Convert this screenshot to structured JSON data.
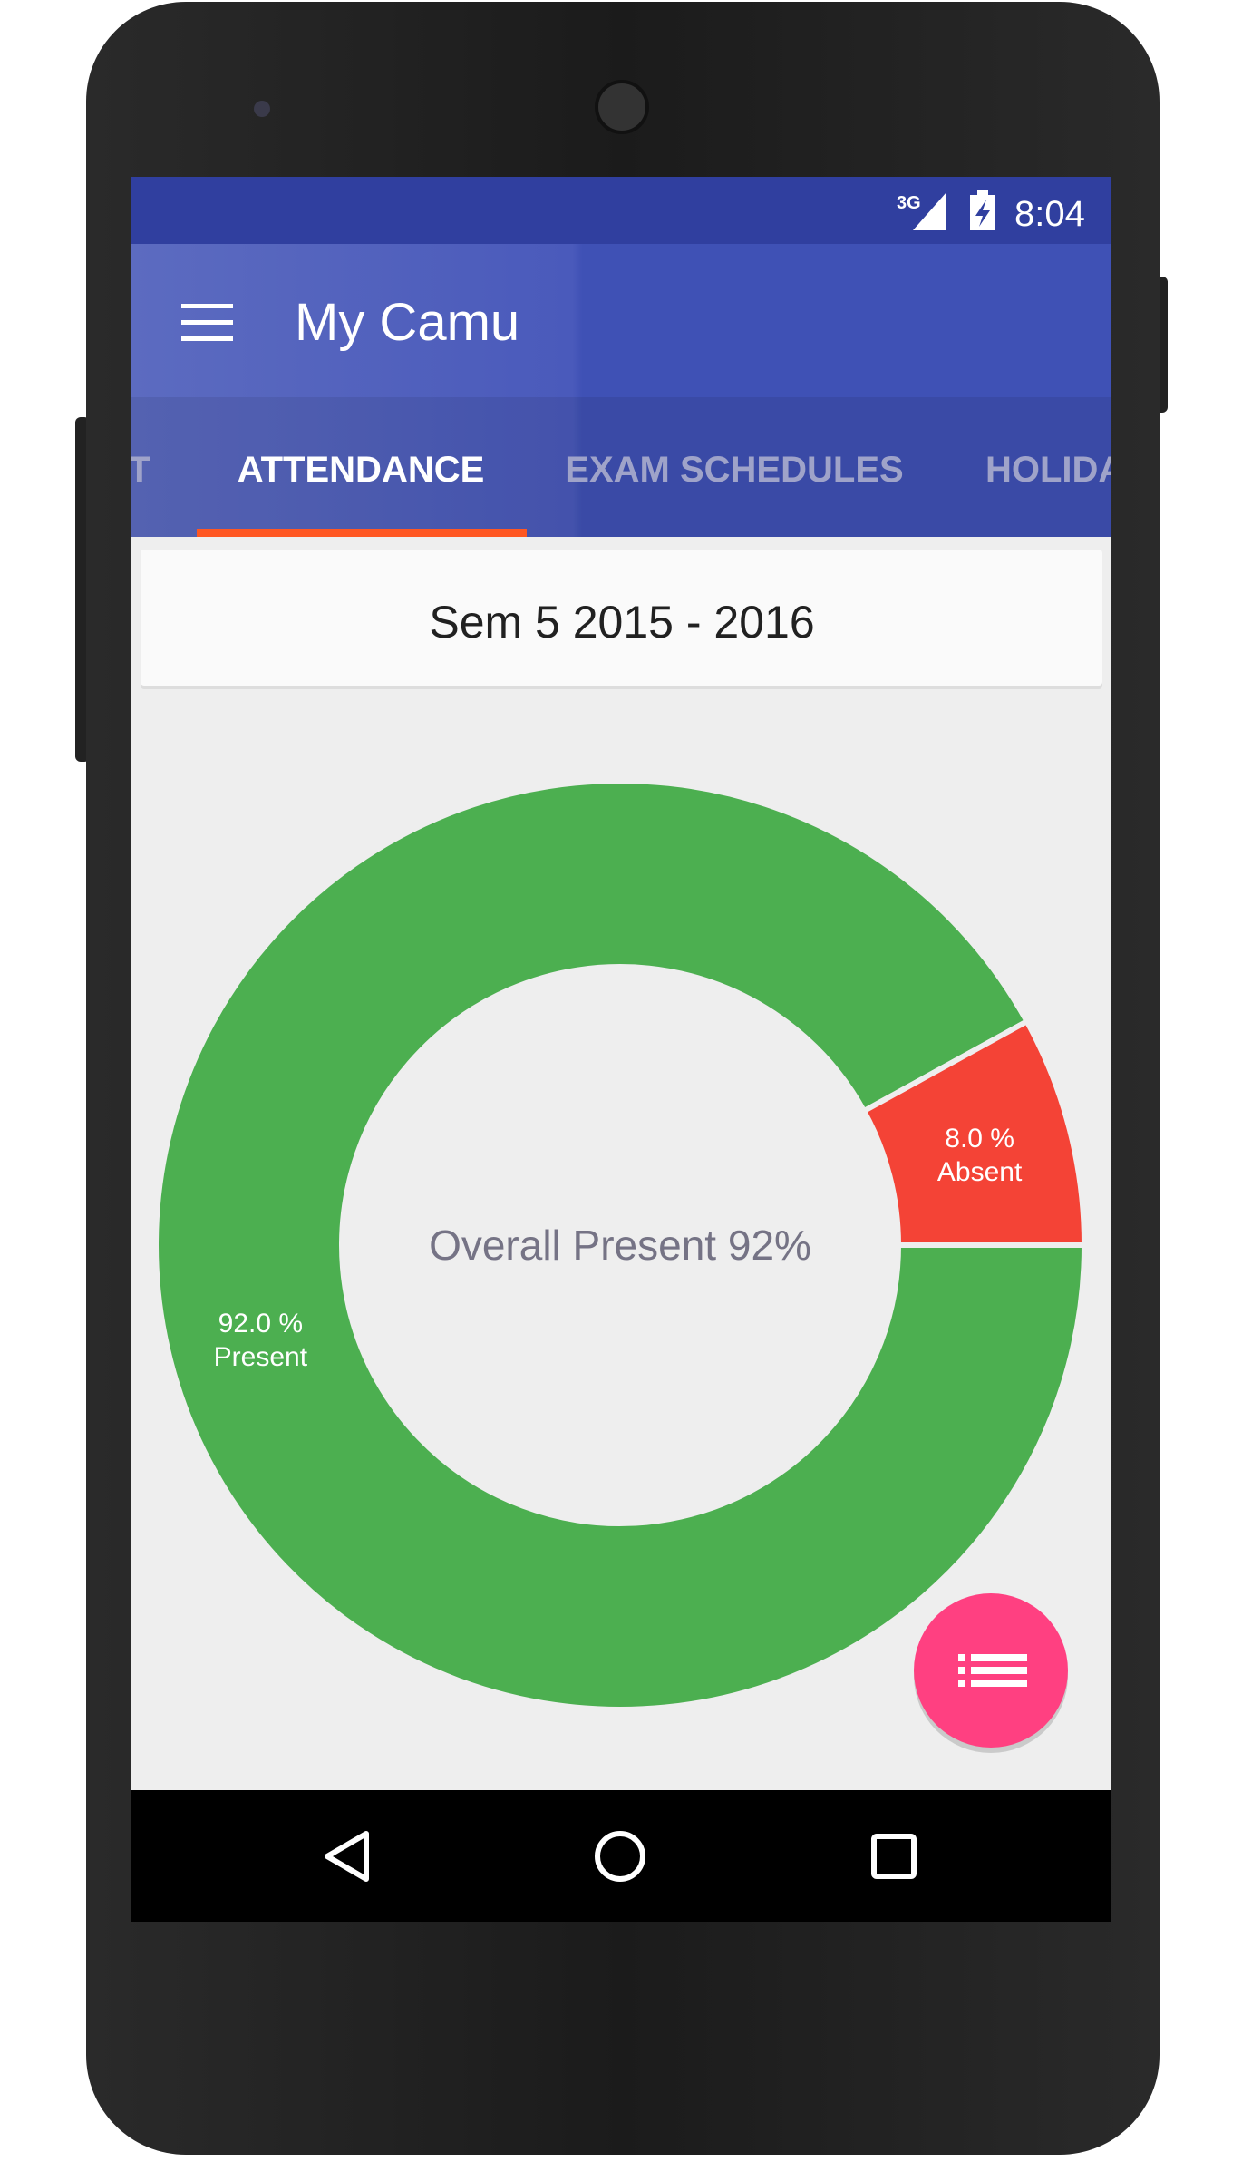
{
  "status_bar": {
    "network": "3G",
    "time": "8:04"
  },
  "app_bar": {
    "title": "My Camu"
  },
  "tabs": [
    "T",
    "ATTENDANCE",
    "EXAM SCHEDULES",
    "HOLIDA"
  ],
  "selector": {
    "label": "Sem 5  2015 - 2016"
  },
  "chart_data": {
    "type": "donut",
    "center_label": "Overall Present 92%",
    "categories": [
      "Present",
      "Absent"
    ],
    "values": [
      92.0,
      8.0
    ],
    "value_labels": [
      "92.0 %",
      "8.0 %"
    ],
    "colors": [
      "#4caf50",
      "#f44336"
    ]
  }
}
